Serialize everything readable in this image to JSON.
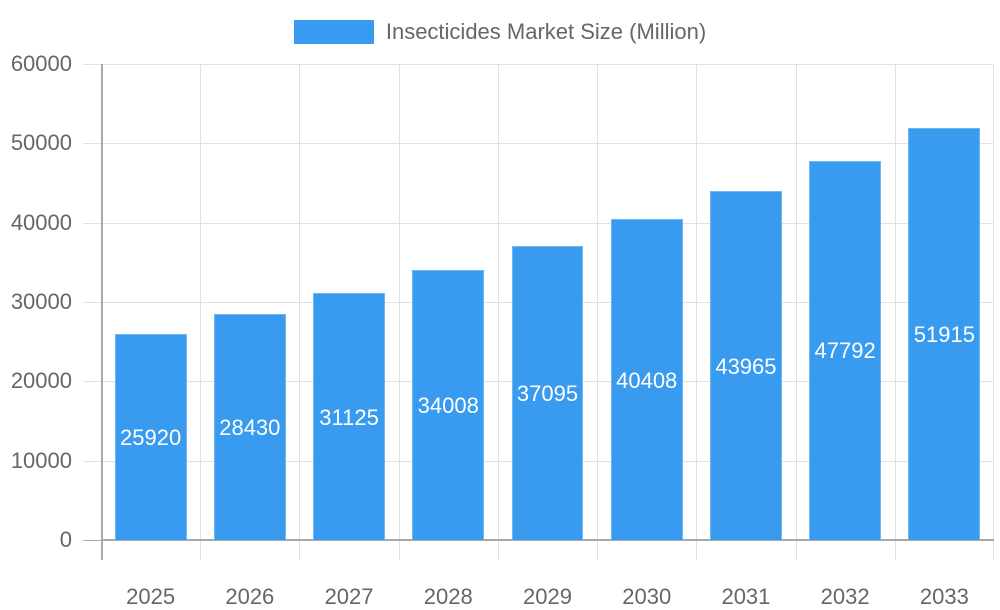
{
  "chart_data": {
    "type": "bar",
    "title": "",
    "xlabel": "",
    "ylabel": "",
    "ylim": [
      0,
      60000
    ],
    "yticks": [
      0,
      10000,
      20000,
      30000,
      40000,
      50000,
      60000
    ],
    "grid": true,
    "legend_position": "top",
    "categories": [
      "2025",
      "2026",
      "2027",
      "2028",
      "2029",
      "2030",
      "2031",
      "2032",
      "2033"
    ],
    "series": [
      {
        "name": "Insecticides Market Size (Million)",
        "color": "#389bef",
        "values": [
          25920,
          28430,
          31125,
          34008,
          37095,
          40408,
          43965,
          47792,
          51915
        ]
      }
    ],
    "data_labels": true
  },
  "legend": {
    "label": "Insecticides Market Size (Million)"
  }
}
